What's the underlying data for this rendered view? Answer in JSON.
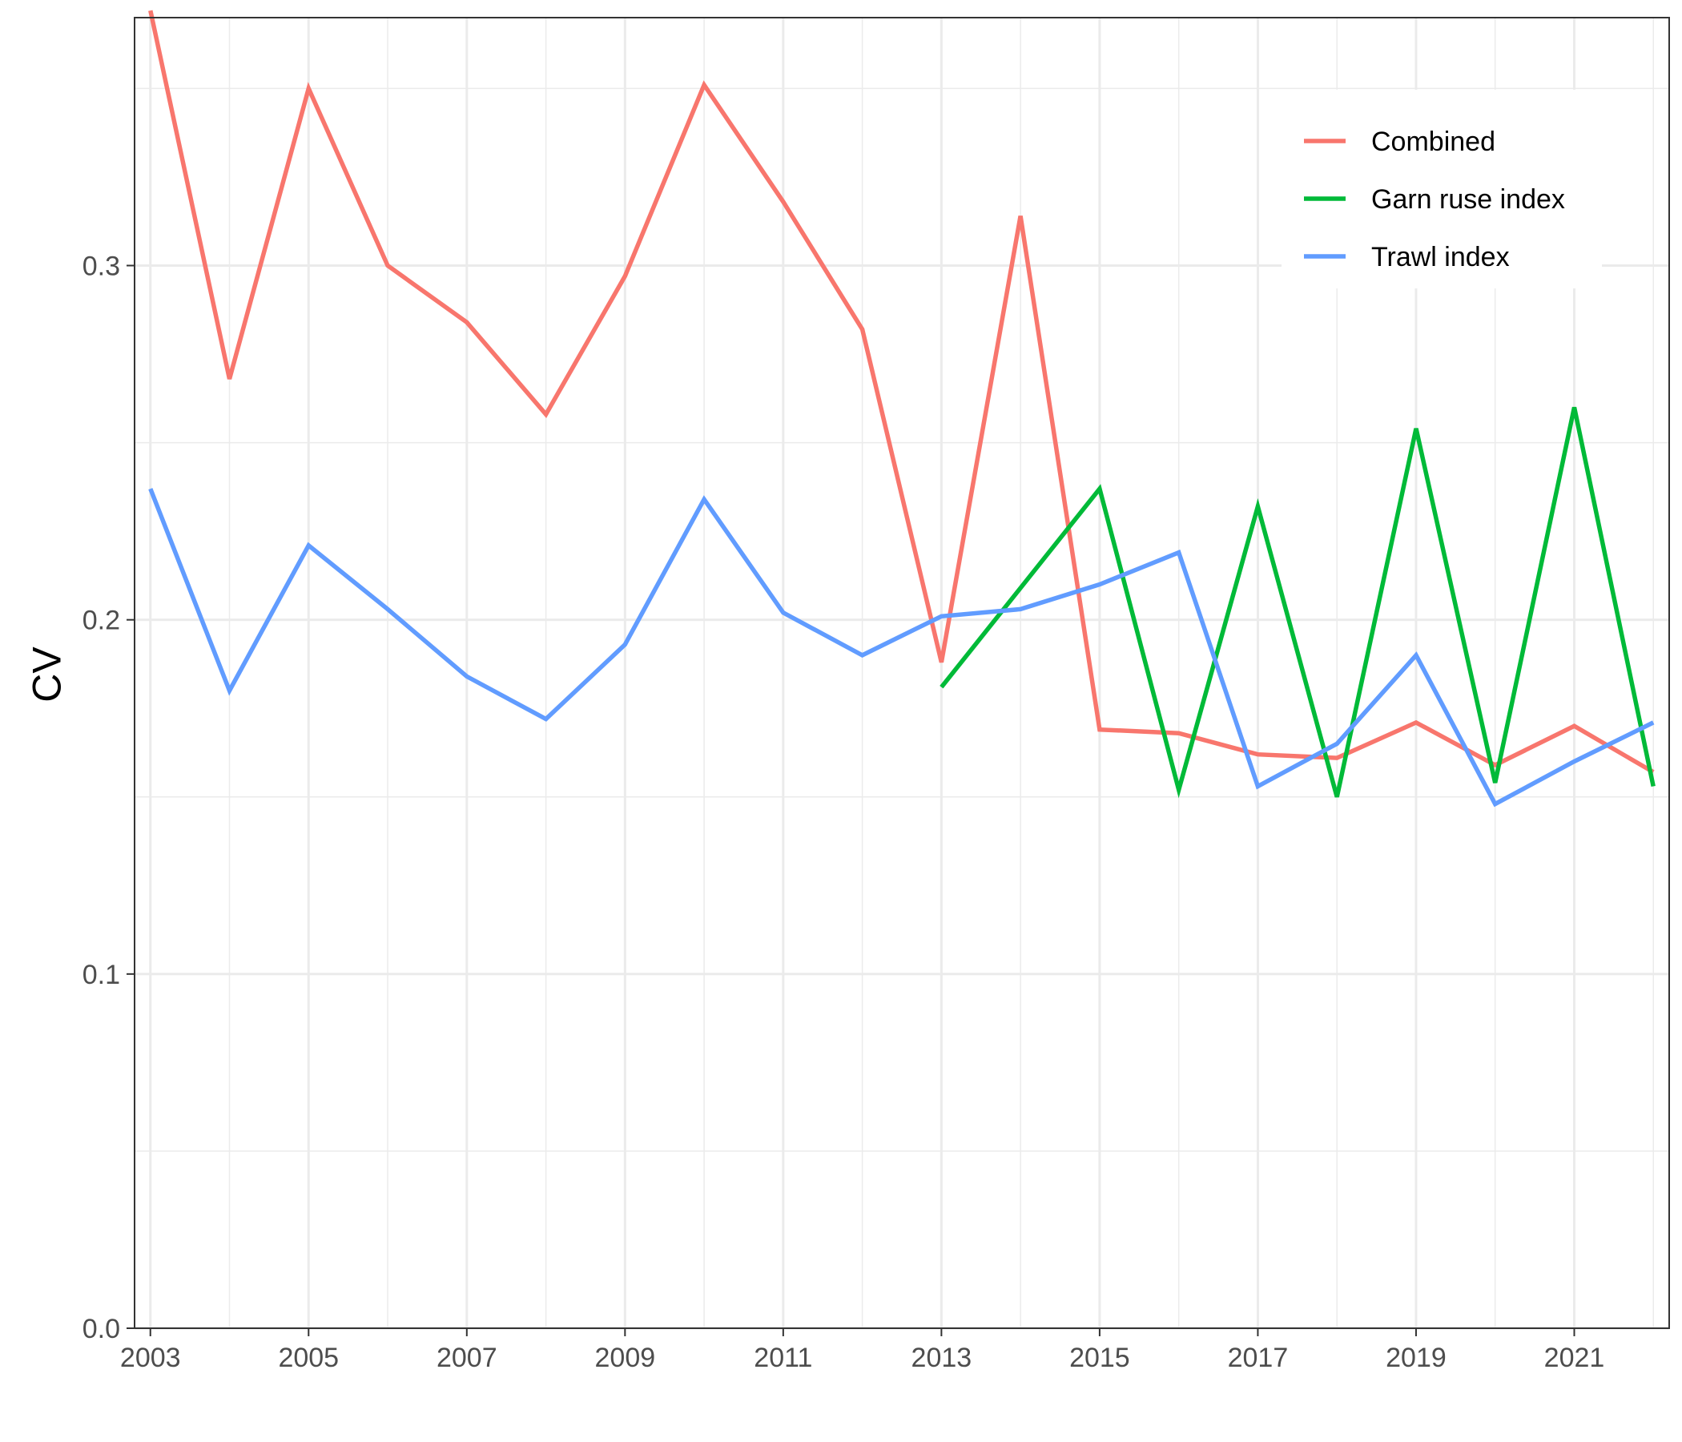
{
  "chart_data": {
    "type": "line",
    "title": "",
    "xlabel": "",
    "ylabel": "CV",
    "xlim": [
      2002.8,
      2022.2
    ],
    "ylim": [
      0,
      0.37
    ],
    "x_ticks": [
      2003,
      2005,
      2007,
      2009,
      2011,
      2013,
      2015,
      2017,
      2019,
      2021
    ],
    "y_ticks": [
      0.0,
      0.1,
      0.2,
      0.3
    ],
    "y_tick_labels": [
      "0.0",
      "0.1",
      "0.2",
      "0.3"
    ],
    "x_tick_labels": [
      "2003",
      "2005",
      "2007",
      "2009",
      "2011",
      "2013",
      "2015",
      "2017",
      "2019",
      "2021"
    ],
    "grid": true,
    "legend_position": "top-right",
    "series": [
      {
        "name": "Combined",
        "color": "#F8766D",
        "x": [
          2003,
          2004,
          2005,
          2006,
          2007,
          2008,
          2009,
          2010,
          2011,
          2012,
          2013,
          2014,
          2015,
          2016,
          2017,
          2018,
          2019,
          2020,
          2021,
          2022
        ],
        "y": [
          0.372,
          0.268,
          0.35,
          0.3,
          0.284,
          0.258,
          0.297,
          0.351,
          0.318,
          0.282,
          0.188,
          0.314,
          0.169,
          0.168,
          0.162,
          0.161,
          0.171,
          0.159,
          0.17,
          0.157
        ]
      },
      {
        "name": "Garn ruse index",
        "color": "#00BA38",
        "x": [
          2013,
          2015,
          2016,
          2017,
          2018,
          2019,
          2020,
          2021,
          2022
        ],
        "y": [
          0.181,
          0.237,
          0.152,
          0.232,
          0.15,
          0.254,
          0.154,
          0.26,
          0.153
        ]
      },
      {
        "name": "Trawl index",
        "color": "#619CFF",
        "x": [
          2003,
          2004,
          2005,
          2006,
          2007,
          2008,
          2009,
          2010,
          2011,
          2012,
          2013,
          2014,
          2015,
          2016,
          2017,
          2018,
          2019,
          2020,
          2021,
          2022
        ],
        "y": [
          0.237,
          0.18,
          0.221,
          0.203,
          0.184,
          0.172,
          0.193,
          0.234,
          0.202,
          0.19,
          0.201,
          0.203,
          0.21,
          0.219,
          0.153,
          0.165,
          0.19,
          0.148,
          0.16,
          0.171
        ]
      }
    ]
  }
}
